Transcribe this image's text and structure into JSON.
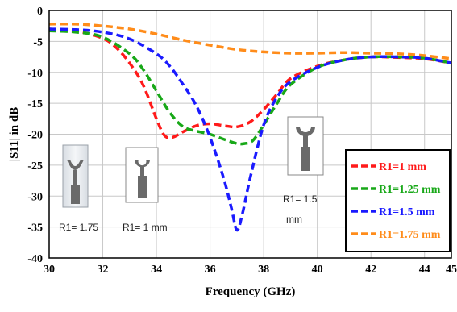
{
  "chart_data": {
    "type": "line",
    "xlabel": "Frequency (GHz)",
    "ylabel": "|S11| in dB",
    "xlim": [
      30,
      45
    ],
    "ylim": [
      -40,
      0
    ],
    "x_ticks": [
      30,
      32,
      34,
      36,
      38,
      40,
      42,
      44,
      45
    ],
    "y_ticks": [
      0,
      -5,
      -10,
      -15,
      -20,
      -25,
      -30,
      -35,
      -40
    ],
    "grid": true,
    "legend_position": "bottom-right",
    "series": [
      {
        "name": "R1=1 mm",
        "color": "#ff1a1a",
        "x": [
          30,
          31,
          32,
          32.5,
          33,
          33.5,
          34,
          34.3,
          34.6,
          35,
          35.5,
          36,
          36.5,
          37,
          37.5,
          38,
          38.5,
          39,
          40,
          41,
          42,
          43,
          44,
          45
        ],
        "y": [
          -3,
          -3.3,
          -4.5,
          -6,
          -8.5,
          -12,
          -17.5,
          -20.2,
          -20.5,
          -19.6,
          -18.6,
          -18.3,
          -18.6,
          -18.8,
          -18,
          -16,
          -13.5,
          -11,
          -9,
          -8,
          -7.5,
          -7.6,
          -7.8,
          -8.5
        ]
      },
      {
        "name": "R1=1.25 mm",
        "color": "#18a818",
        "x": [
          30,
          31,
          32,
          33,
          33.5,
          34,
          34.5,
          35,
          35.5,
          36,
          36.5,
          37,
          37.3,
          37.6,
          38,
          38.5,
          39,
          40,
          41,
          42,
          43,
          44,
          45
        ],
        "y": [
          -3.3,
          -3.5,
          -4.3,
          -7,
          -9.5,
          -13,
          -16.5,
          -18.8,
          -19.5,
          -20,
          -20.8,
          -21.5,
          -21.5,
          -21,
          -18.5,
          -15,
          -12,
          -9.2,
          -8,
          -7.5,
          -7.5,
          -7.7,
          -8.5
        ]
      },
      {
        "name": "R1=1.5 mm",
        "color": "#1a1aff",
        "x": [
          30,
          31,
          32,
          33,
          34,
          34.5,
          35,
          35.5,
          36,
          36.5,
          36.8,
          37,
          37.2,
          37.5,
          38,
          38.5,
          39,
          40,
          41,
          42,
          43,
          44,
          45
        ],
        "y": [
          -3,
          -3.1,
          -3.5,
          -4.6,
          -7,
          -9,
          -12,
          -15.5,
          -20.5,
          -27,
          -32,
          -35.5,
          -33,
          -27,
          -18.5,
          -14,
          -11.5,
          -9.2,
          -8,
          -7.5,
          -7.5,
          -7.7,
          -8.5
        ]
      },
      {
        "name": "R1=1.75 mm",
        "color": "#ff8c1a",
        "x": [
          30,
          31,
          32,
          33,
          34,
          35,
          36,
          37,
          38,
          39,
          40,
          41,
          42,
          43,
          44,
          45
        ],
        "y": [
          -2.2,
          -2.2,
          -2.5,
          -3,
          -3.8,
          -4.8,
          -5.6,
          -6.3,
          -6.7,
          -6.9,
          -6.9,
          -6.8,
          -6.9,
          -7,
          -7.3,
          -7.8
        ]
      }
    ],
    "annotations": [
      {
        "id": "r175",
        "text": "R1= 1.75"
      },
      {
        "id": "r1",
        "text": "R1= 1 mm"
      },
      {
        "id": "r15_line1",
        "text": "R1= 1.5"
      },
      {
        "id": "r15_line2",
        "text": "mm"
      }
    ]
  }
}
